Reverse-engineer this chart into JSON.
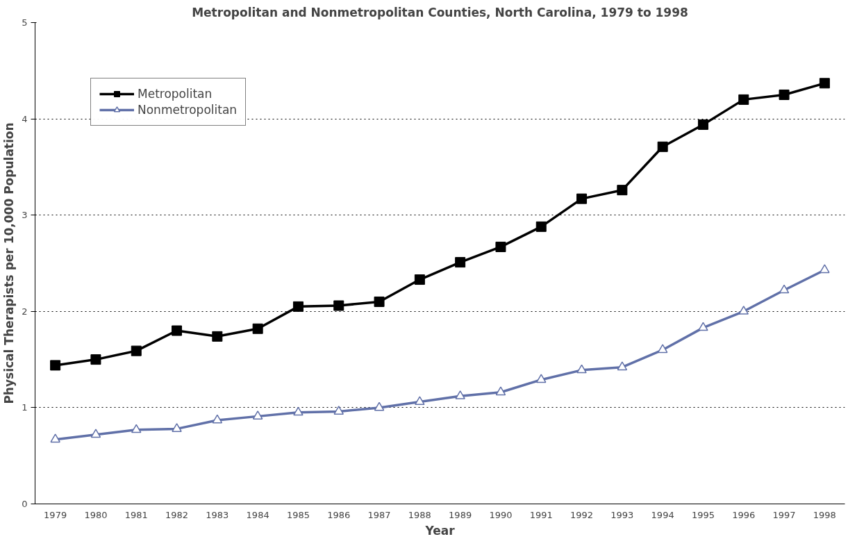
{
  "chart_data": {
    "type": "line",
    "title": "Metropolitan and Nonmetropolitan Counties, North Carolina, 1979 to 1998",
    "xlabel": "Year",
    "ylabel": "Physical Therapists per 10,000 Population",
    "categories": [
      "1979",
      "1980",
      "1981",
      "1982",
      "1983",
      "1984",
      "1985",
      "1986",
      "1987",
      "1988",
      "1989",
      "1990",
      "1991",
      "1992",
      "1993",
      "1994",
      "1995",
      "1996",
      "1997",
      "1998"
    ],
    "series": [
      {
        "name": "Metropolitan",
        "color": "#000000",
        "marker": "square",
        "values": [
          1.44,
          1.5,
          1.59,
          1.8,
          1.74,
          1.82,
          2.05,
          2.06,
          2.1,
          2.33,
          2.51,
          2.67,
          2.88,
          3.17,
          3.26,
          3.71,
          3.94,
          4.2,
          4.25,
          4.37
        ]
      },
      {
        "name": "Nonmetropolitan",
        "color": "#6070a8",
        "marker": "triangle",
        "values": [
          0.67,
          0.72,
          0.77,
          0.78,
          0.87,
          0.91,
          0.95,
          0.96,
          1.0,
          1.06,
          1.12,
          1.16,
          1.29,
          1.39,
          1.42,
          1.6,
          1.83,
          2.0,
          2.22,
          2.43
        ]
      }
    ],
    "ylim": [
      0,
      5
    ],
    "yticks": [
      0,
      1,
      2,
      3,
      4,
      5
    ],
    "grid": "y",
    "legend": "top left",
    "line_style": "solid"
  }
}
